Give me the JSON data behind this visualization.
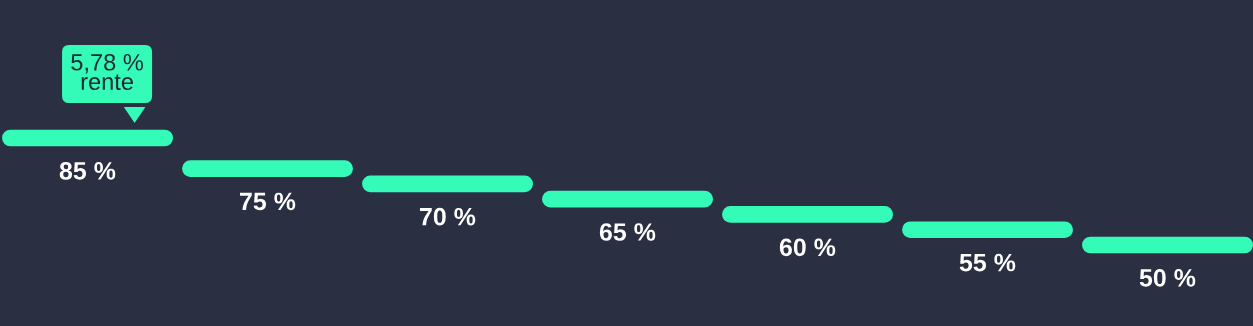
{
  "chart_data": {
    "type": "other",
    "categories": [
      null,
      null,
      null,
      null,
      null,
      null,
      null
    ],
    "values": [
      85,
      75,
      70,
      65,
      60,
      55,
      50
    ],
    "value_labels": [
      "85 %",
      "75 %",
      "70 %",
      "65 %",
      "60 %",
      "55 %",
      "50 %"
    ],
    "color": "#35fbb8",
    "annotations": [
      "5,78 %\nrente"
    ]
  }
}
